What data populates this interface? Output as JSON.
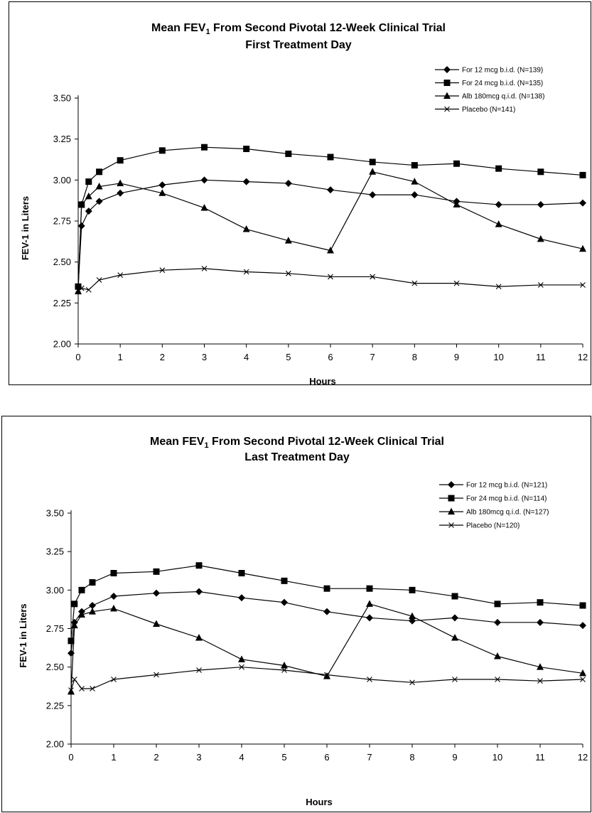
{
  "chart_data": [
    {
      "type": "line",
      "title_main": "Mean FEV",
      "title_sub": "1",
      "title_rest": " From Second Pivotal 12-Week Clinical Trial",
      "subtitle": "First Treatment Day",
      "xlabel": "Hours",
      "ylabel": "FEV-1 in Liters",
      "xlim": [
        0,
        12
      ],
      "ylim": [
        2.0,
        3.5
      ],
      "xticks": [
        "0",
        "1",
        "2",
        "3",
        "4",
        "5",
        "6",
        "7",
        "8",
        "9",
        "10",
        "11",
        "12"
      ],
      "yticks": [
        "2.00",
        "2.25",
        "2.50",
        "2.75",
        "3.00",
        "3.25",
        "3.50"
      ],
      "grid": false,
      "legend_position": "top-right",
      "series": [
        {
          "name": "For 12 mcg b.i.d. (N=139)",
          "marker": "diamond",
          "x": [
            0,
            0.08,
            0.25,
            0.5,
            1,
            2,
            3,
            4,
            5,
            6,
            7,
            8,
            9,
            10,
            11,
            12
          ],
          "y": [
            2.35,
            2.72,
            2.81,
            2.87,
            2.92,
            2.97,
            3.0,
            2.99,
            2.98,
            2.94,
            2.91,
            2.91,
            2.87,
            2.85,
            2.85,
            2.86
          ]
        },
        {
          "name": "For 24 mcg b.i.d. (N=135)",
          "marker": "square",
          "x": [
            0,
            0.08,
            0.25,
            0.5,
            1,
            2,
            3,
            4,
            5,
            6,
            7,
            8,
            9,
            10,
            11,
            12
          ],
          "y": [
            2.35,
            2.85,
            2.99,
            3.05,
            3.12,
            3.18,
            3.2,
            3.19,
            3.16,
            3.14,
            3.11,
            3.09,
            3.1,
            3.07,
            3.05,
            3.03
          ]
        },
        {
          "name": "Alb 180mcg q.i.d. (N=138)",
          "marker": "triangle",
          "x": [
            0,
            0.08,
            0.25,
            0.5,
            1,
            2,
            3,
            4,
            5,
            6,
            7,
            8,
            9,
            10,
            11,
            12
          ],
          "y": [
            2.32,
            2.85,
            2.9,
            2.96,
            2.98,
            2.92,
            2.83,
            2.7,
            2.63,
            2.57,
            3.05,
            2.99,
            2.85,
            2.73,
            2.64,
            2.58
          ]
        },
        {
          "name": "Placebo (N=141)",
          "marker": "x",
          "x": [
            0,
            0.08,
            0.25,
            0.5,
            1,
            2,
            3,
            4,
            5,
            6,
            7,
            8,
            9,
            10,
            11,
            12
          ],
          "y": [
            2.33,
            2.34,
            2.33,
            2.39,
            2.42,
            2.45,
            2.46,
            2.44,
            2.43,
            2.41,
            2.41,
            2.37,
            2.37,
            2.35,
            2.36,
            2.36
          ]
        }
      ]
    },
    {
      "type": "line",
      "title_main": "Mean FEV",
      "title_sub": "1",
      "title_rest": " From Second Pivotal 12-Week Clinical Trial",
      "subtitle": "Last Treatment Day",
      "xlabel": "Hours",
      "ylabel": "FEV-1 in Liters",
      "xlim": [
        0,
        12
      ],
      "ylim": [
        2.0,
        3.5
      ],
      "xticks": [
        "0",
        "1",
        "2",
        "3",
        "4",
        "5",
        "6",
        "7",
        "8",
        "9",
        "10",
        "11",
        "12"
      ],
      "yticks": [
        "2.00",
        "2.25",
        "2.50",
        "2.75",
        "3.00",
        "3.25",
        "3.50"
      ],
      "grid": false,
      "legend_position": "top-right",
      "series": [
        {
          "name": "For 12 mcg b.i.d. (N=121)",
          "marker": "diamond",
          "x": [
            0,
            0.08,
            0.25,
            0.5,
            1,
            2,
            3,
            4,
            5,
            6,
            7,
            8,
            9,
            10,
            11,
            12
          ],
          "y": [
            2.59,
            2.79,
            2.86,
            2.9,
            2.96,
            2.98,
            2.99,
            2.95,
            2.92,
            2.86,
            2.82,
            2.8,
            2.82,
            2.79,
            2.79,
            2.77
          ]
        },
        {
          "name": "For 24 mcg b.i.d. (N=114)",
          "marker": "square",
          "x": [
            0,
            0.08,
            0.25,
            0.5,
            1,
            2,
            3,
            4,
            5,
            6,
            7,
            8,
            9,
            10,
            11,
            12
          ],
          "y": [
            2.67,
            2.91,
            3.0,
            3.05,
            3.11,
            3.12,
            3.16,
            3.11,
            3.06,
            3.01,
            3.01,
            3.0,
            2.96,
            2.91,
            2.92,
            2.9
          ]
        },
        {
          "name": "Alb 180mcg q.i.d. (N=127)",
          "marker": "triangle",
          "x": [
            0,
            0.08,
            0.25,
            0.5,
            1,
            2,
            3,
            4,
            5,
            6,
            7,
            8,
            9,
            10,
            11,
            12
          ],
          "y": [
            2.34,
            2.77,
            2.84,
            2.86,
            2.88,
            2.78,
            2.69,
            2.55,
            2.51,
            2.44,
            2.91,
            2.83,
            2.69,
            2.57,
            2.5,
            2.46
          ]
        },
        {
          "name": "Placebo (N=120)",
          "marker": "x",
          "x": [
            0,
            0.08,
            0.25,
            0.5,
            1,
            2,
            3,
            4,
            5,
            6,
            7,
            8,
            9,
            10,
            11,
            12
          ],
          "y": [
            2.35,
            2.42,
            2.36,
            2.36,
            2.42,
            2.45,
            2.48,
            2.5,
            2.48,
            2.45,
            2.42,
            2.4,
            2.42,
            2.42,
            2.41,
            2.42
          ]
        }
      ]
    }
  ]
}
